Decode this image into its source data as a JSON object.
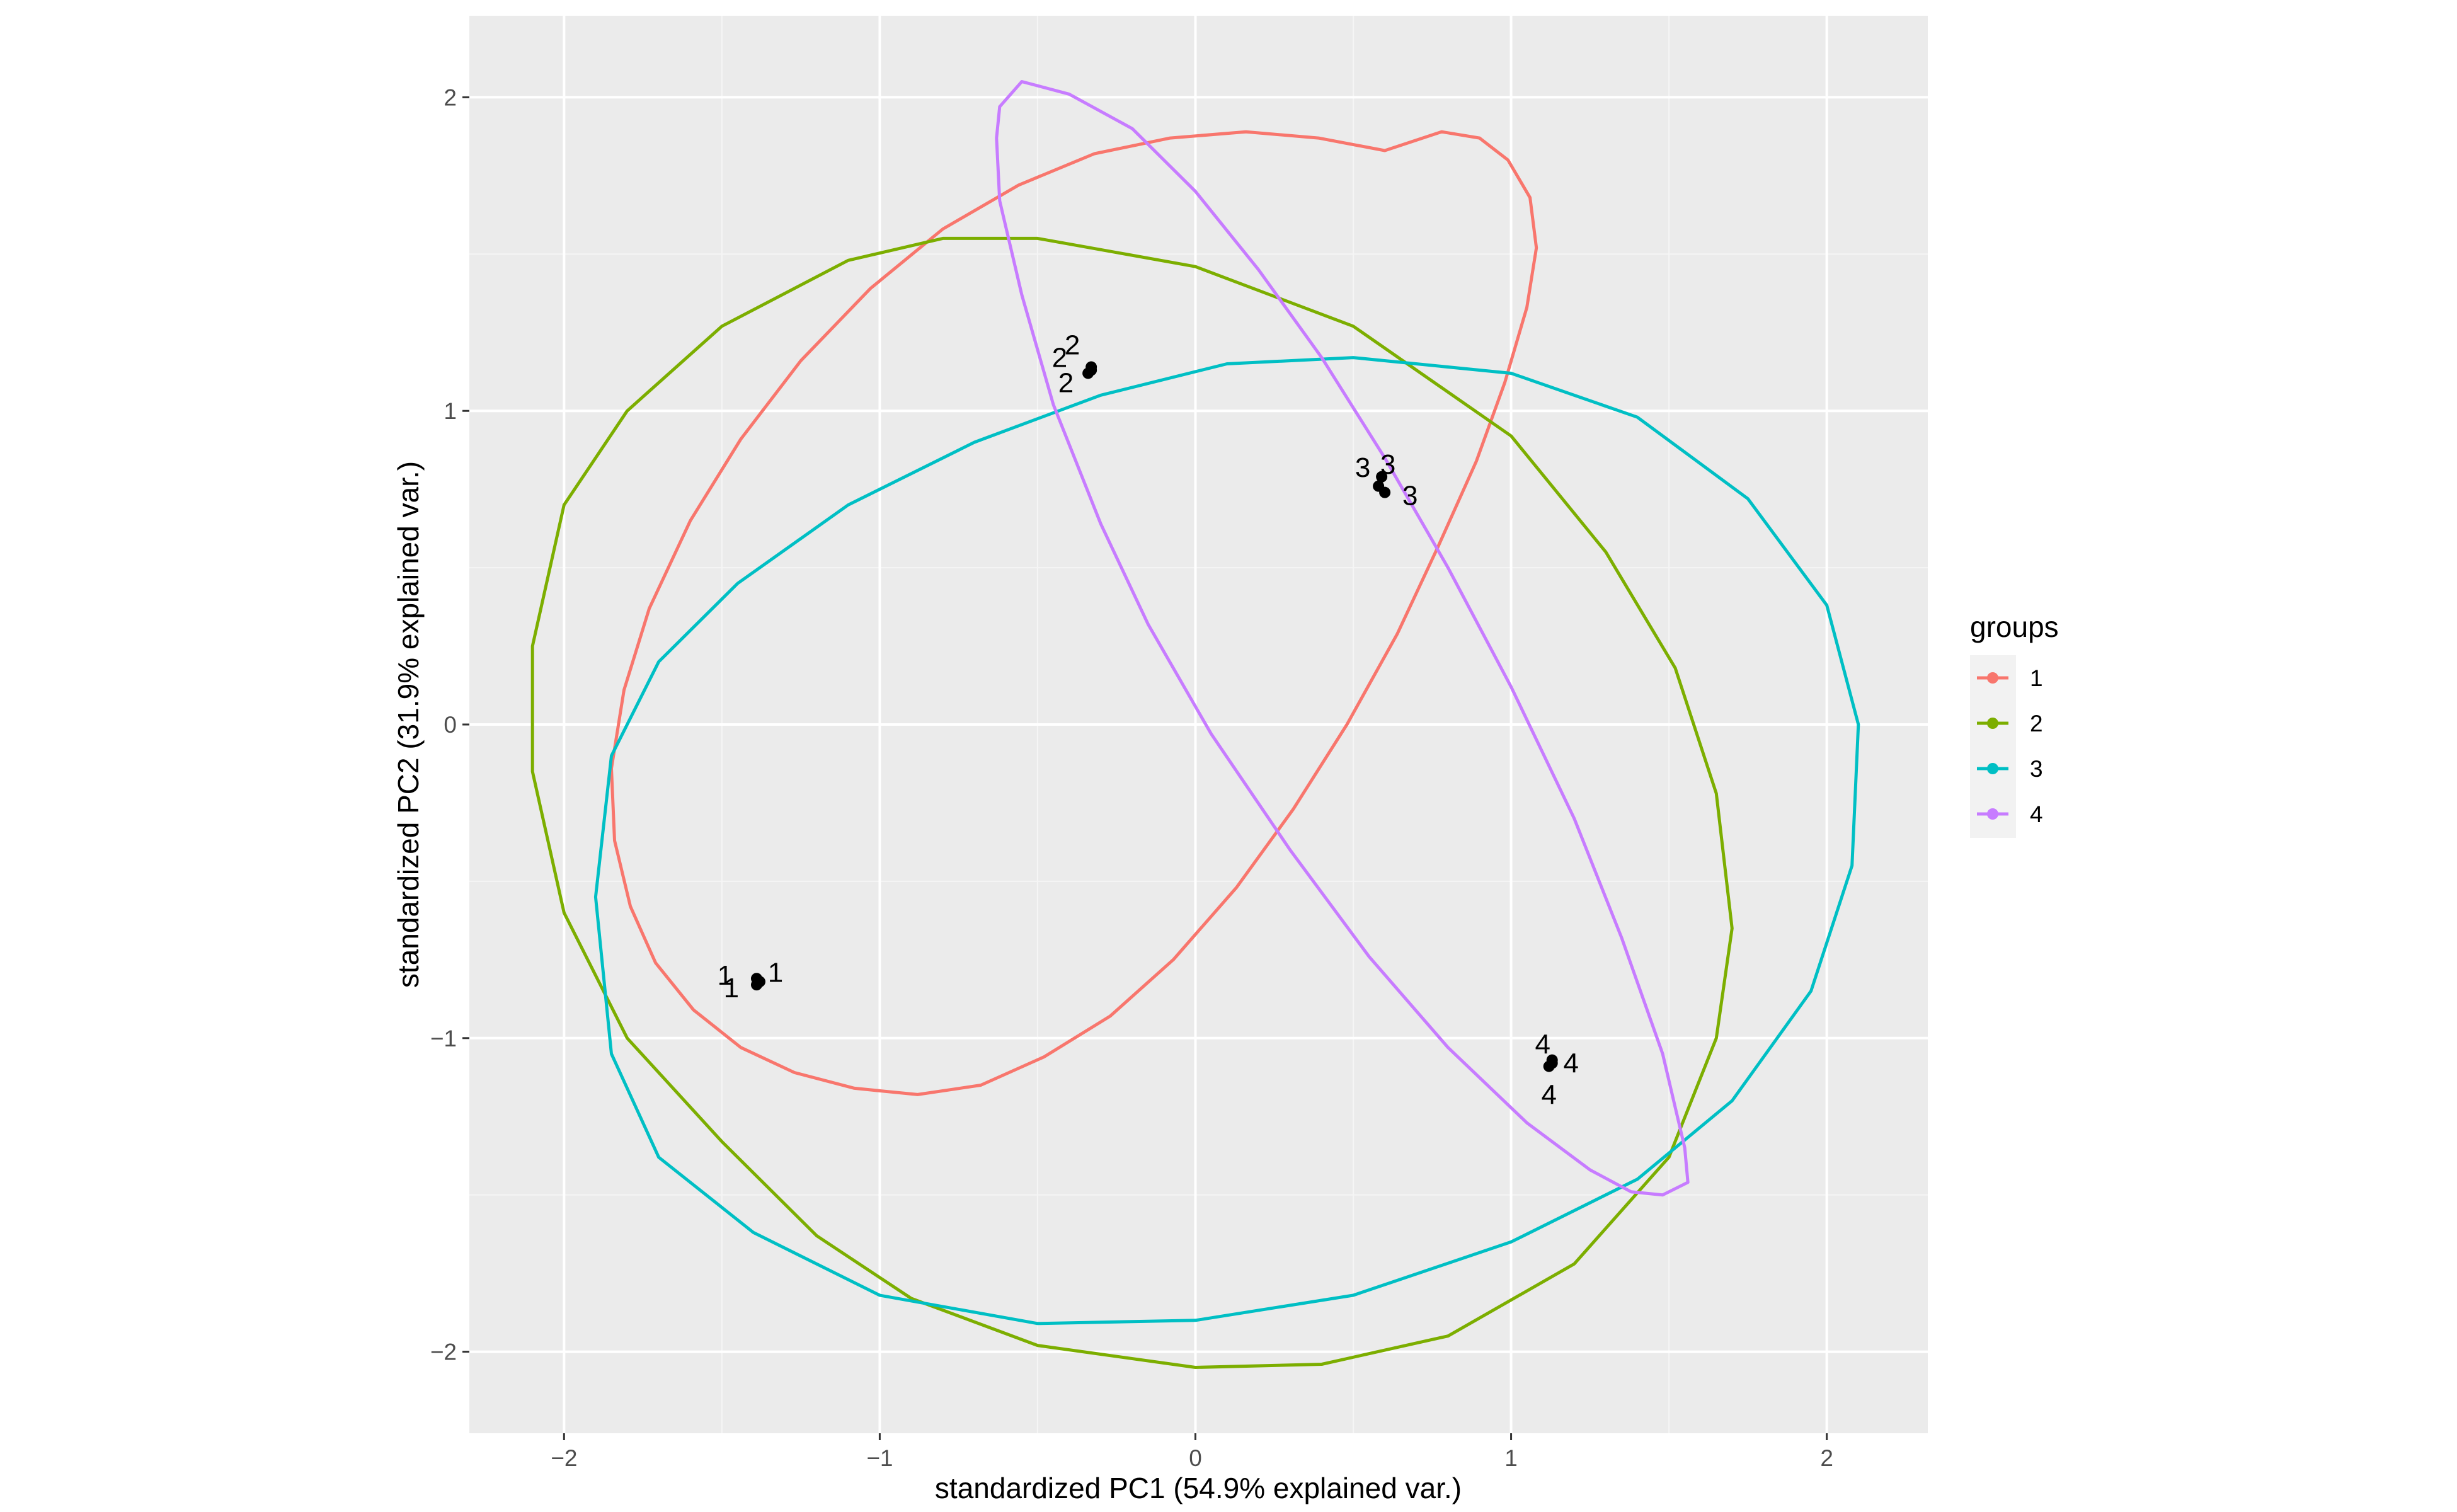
{
  "chart_data": {
    "type": "scatter",
    "xlabel": "standardized PC1 (54.9% explained var.)",
    "ylabel": "standardized PC2 (31.9% explained var.)",
    "xlim": [
      -2.3,
      2.32
    ],
    "ylim": [
      -2.26,
      2.26
    ],
    "xticks": [
      -2,
      -1,
      0,
      1,
      2
    ],
    "xtick_labels": [
      "−2",
      "−1",
      "0",
      "1",
      "2"
    ],
    "yticks": [
      -2,
      -1,
      0,
      1,
      2
    ],
    "ytick_labels": [
      "−2",
      "−1",
      "0",
      "1",
      "2"
    ],
    "grid": true,
    "panel_background": "#ebebeb",
    "legend": {
      "title": "groups",
      "placement": "right",
      "items": [
        {
          "label": "1",
          "color": "#F8766D"
        },
        {
          "label": "2",
          "color": "#7CAE00"
        },
        {
          "label": "3",
          "color": "#00BFC4"
        },
        {
          "label": "4",
          "color": "#C77CFF"
        }
      ]
    },
    "points": [
      {
        "group": "1",
        "x": -1.39,
        "y": -0.81
      },
      {
        "group": "1",
        "x": -1.38,
        "y": -0.82
      },
      {
        "group": "1",
        "x": -1.39,
        "y": -0.83
      },
      {
        "group": "2",
        "x": -0.33,
        "y": 1.13
      },
      {
        "group": "2",
        "x": -0.34,
        "y": 1.12
      },
      {
        "group": "2",
        "x": -0.33,
        "y": 1.14
      },
      {
        "group": "3",
        "x": 0.59,
        "y": 0.79
      },
      {
        "group": "3",
        "x": 0.58,
        "y": 0.76
      },
      {
        "group": "3",
        "x": 0.6,
        "y": 0.74
      },
      {
        "group": "4",
        "x": 1.13,
        "y": -1.07
      },
      {
        "group": "4",
        "x": 1.12,
        "y": -1.09
      },
      {
        "group": "4",
        "x": 1.13,
        "y": -1.08
      }
    ],
    "point_labels": [
      {
        "text": "1",
        "x": -1.49,
        "y": -0.8
      },
      {
        "text": "1",
        "x": -1.47,
        "y": -0.84
      },
      {
        "text": "1",
        "x": -1.33,
        "y": -0.79
      },
      {
        "text": "2",
        "x": -0.39,
        "y": 1.21
      },
      {
        "text": "2",
        "x": -0.43,
        "y": 1.17
      },
      {
        "text": "2",
        "x": -0.41,
        "y": 1.09
      },
      {
        "text": "3",
        "x": 0.53,
        "y": 0.82
      },
      {
        "text": "3",
        "x": 0.61,
        "y": 0.83
      },
      {
        "text": "3",
        "x": 0.68,
        "y": 0.73
      },
      {
        "text": "4",
        "x": 1.1,
        "y": -1.02
      },
      {
        "text": "4",
        "x": 1.19,
        "y": -1.08
      },
      {
        "text": "4",
        "x": 1.12,
        "y": -1.18
      }
    ],
    "ellipses": [
      {
        "group": "1",
        "color": "#F8766D",
        "points": [
          [
            0.78,
            1.89
          ],
          [
            0.9,
            1.87
          ],
          [
            0.99,
            1.8
          ],
          [
            1.06,
            1.68
          ],
          [
            1.08,
            1.52
          ],
          [
            1.05,
            1.33
          ],
          [
            0.98,
            1.09
          ],
          [
            0.89,
            0.84
          ],
          [
            0.77,
            0.57
          ],
          [
            0.64,
            0.29
          ],
          [
            0.48,
            0.0
          ],
          [
            0.31,
            -0.27
          ],
          [
            0.13,
            -0.52
          ],
          [
            -0.07,
            -0.75
          ],
          [
            -0.27,
            -0.93
          ],
          [
            -0.48,
            -1.06
          ],
          [
            -0.68,
            -1.15
          ],
          [
            -0.88,
            -1.18
          ],
          [
            -1.08,
            -1.16
          ],
          [
            -1.27,
            -1.11
          ],
          [
            -1.44,
            -1.03
          ],
          [
            -1.59,
            -0.91
          ],
          [
            -1.71,
            -0.76
          ],
          [
            -1.79,
            -0.58
          ],
          [
            -1.84,
            -0.37
          ],
          [
            -1.85,
            -0.14
          ],
          [
            -1.81,
            0.11
          ],
          [
            -1.73,
            0.37
          ],
          [
            -1.6,
            0.65
          ],
          [
            -1.44,
            0.91
          ],
          [
            -1.25,
            1.16
          ],
          [
            -1.03,
            1.39
          ],
          [
            -0.8,
            1.58
          ],
          [
            -0.56,
            1.72
          ],
          [
            -0.32,
            1.82
          ],
          [
            -0.08,
            1.87
          ],
          [
            0.16,
            1.89
          ],
          [
            0.39,
            1.87
          ],
          [
            0.6,
            1.83
          ]
        ]
      },
      {
        "group": "2",
        "color": "#7CAE00",
        "points": [
          [
            -0.5,
            1.55
          ],
          [
            0.0,
            1.46
          ],
          [
            0.5,
            1.27
          ],
          [
            1.0,
            0.92
          ],
          [
            1.3,
            0.55
          ],
          [
            1.52,
            0.18
          ],
          [
            1.65,
            -0.22
          ],
          [
            1.7,
            -0.65
          ],
          [
            1.65,
            -1.0
          ],
          [
            1.5,
            -1.38
          ],
          [
            1.2,
            -1.72
          ],
          [
            0.8,
            -1.95
          ],
          [
            0.4,
            -2.04
          ],
          [
            0.0,
            -2.05
          ],
          [
            -0.5,
            -1.98
          ],
          [
            -0.9,
            -1.83
          ],
          [
            -1.2,
            -1.63
          ],
          [
            -1.5,
            -1.33
          ],
          [
            -1.8,
            -1.0
          ],
          [
            -2.0,
            -0.6
          ],
          [
            -2.1,
            -0.15
          ],
          [
            -2.1,
            0.25
          ],
          [
            -2.0,
            0.7
          ],
          [
            -1.8,
            1.0
          ],
          [
            -1.5,
            1.27
          ],
          [
            -1.1,
            1.48
          ],
          [
            -0.8,
            1.55
          ],
          [
            -0.5,
            1.55
          ]
        ]
      },
      {
        "group": "3",
        "color": "#00BFC4",
        "points": [
          [
            0.5,
            1.17
          ],
          [
            1.0,
            1.12
          ],
          [
            1.4,
            0.98
          ],
          [
            1.75,
            0.72
          ],
          [
            2.0,
            0.38
          ],
          [
            2.1,
            0.0
          ],
          [
            2.08,
            -0.45
          ],
          [
            1.95,
            -0.85
          ],
          [
            1.7,
            -1.2
          ],
          [
            1.4,
            -1.45
          ],
          [
            1.0,
            -1.65
          ],
          [
            0.5,
            -1.82
          ],
          [
            0.0,
            -1.9
          ],
          [
            -0.5,
            -1.91
          ],
          [
            -1.0,
            -1.82
          ],
          [
            -1.4,
            -1.62
          ],
          [
            -1.7,
            -1.38
          ],
          [
            -1.85,
            -1.05
          ],
          [
            -1.9,
            -0.55
          ],
          [
            -1.85,
            -0.1
          ],
          [
            -1.7,
            0.2
          ],
          [
            -1.45,
            0.45
          ],
          [
            -1.1,
            0.7
          ],
          [
            -0.7,
            0.9
          ],
          [
            -0.3,
            1.05
          ],
          [
            0.1,
            1.15
          ],
          [
            0.5,
            1.17
          ]
        ]
      },
      {
        "group": "4",
        "color": "#C77CFF",
        "points": [
          [
            -0.55,
            2.05
          ],
          [
            -0.4,
            2.01
          ],
          [
            -0.2,
            1.9
          ],
          [
            0.0,
            1.7
          ],
          [
            0.2,
            1.45
          ],
          [
            0.4,
            1.17
          ],
          [
            0.6,
            0.85
          ],
          [
            0.8,
            0.5
          ],
          [
            1.0,
            0.12
          ],
          [
            1.2,
            -0.3
          ],
          [
            1.35,
            -0.68
          ],
          [
            1.48,
            -1.05
          ],
          [
            1.55,
            -1.35
          ],
          [
            1.56,
            -1.46
          ],
          [
            1.48,
            -1.5
          ],
          [
            1.38,
            -1.49
          ],
          [
            1.25,
            -1.42
          ],
          [
            1.05,
            -1.27
          ],
          [
            0.8,
            -1.03
          ],
          [
            0.55,
            -0.74
          ],
          [
            0.3,
            -0.4
          ],
          [
            0.05,
            -0.03
          ],
          [
            -0.15,
            0.32
          ],
          [
            -0.3,
            0.64
          ],
          [
            -0.45,
            1.02
          ],
          [
            -0.55,
            1.37
          ],
          [
            -0.62,
            1.67
          ],
          [
            -0.63,
            1.87
          ],
          [
            -0.62,
            1.97
          ],
          [
            -0.55,
            2.05
          ]
        ]
      }
    ]
  }
}
